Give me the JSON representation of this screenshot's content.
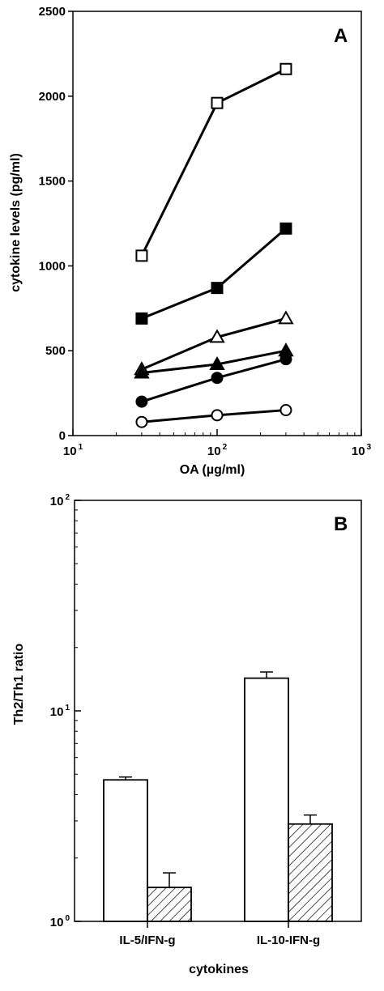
{
  "chart_data": [
    {
      "panel_label": "A",
      "type": "line",
      "xlabel": "OA (µg/ml)",
      "ylabel": "cytokine levels (pg/ml)",
      "x_scale": "log",
      "xlim": [
        10,
        1000
      ],
      "ylim": [
        0,
        2500
      ],
      "x_ticks": [
        {
          "base": "10",
          "exp": "1",
          "value": 10
        },
        {
          "base": "10",
          "exp": "2",
          "value": 100
        },
        {
          "base": "10",
          "exp": "3",
          "value": 1000
        }
      ],
      "y_ticks": [
        {
          "label": "0",
          "value": 0
        },
        {
          "label": "500",
          "value": 500
        },
        {
          "label": "1000",
          "value": 1000
        },
        {
          "label": "1500",
          "value": 1500
        },
        {
          "label": "2000",
          "value": 2000
        },
        {
          "label": "2500",
          "value": 2500
        }
      ],
      "x": [
        30,
        100,
        300
      ],
      "series": [
        {
          "marker": "open-square",
          "values": [
            1060,
            1960,
            2160
          ]
        },
        {
          "marker": "filled-square",
          "values": [
            690,
            870,
            1220
          ]
        },
        {
          "marker": "open-triangle",
          "values": [
            390,
            580,
            690
          ]
        },
        {
          "marker": "filled-triangle",
          "values": [
            370,
            420,
            500
          ]
        },
        {
          "marker": "filled-circle",
          "values": [
            200,
            340,
            450
          ]
        },
        {
          "marker": "open-circle",
          "values": [
            80,
            120,
            150
          ]
        }
      ],
      "grid": false
    },
    {
      "panel_label": "B",
      "type": "bar",
      "xlabel": "cytokines",
      "ylabel": "Th2/Th1 ratio",
      "y_scale": "log",
      "ylim": [
        1,
        100
      ],
      "y_ticks": [
        {
          "base": "10",
          "exp": "0",
          "value": 1
        },
        {
          "base": "10",
          "exp": "1",
          "value": 10
        },
        {
          "base": "10",
          "exp": "2",
          "value": 100
        }
      ],
      "categories": [
        "IL-5/IFN-g",
        "IL-10-IFN-g"
      ],
      "series": [
        {
          "fill": "open",
          "values": [
            4.7,
            14.3
          ],
          "errors": [
            0.15,
            1.0
          ]
        },
        {
          "fill": "hatched",
          "values": [
            1.45,
            2.9
          ],
          "errors": [
            0.25,
            0.3
          ]
        }
      ],
      "grid": false
    }
  ]
}
